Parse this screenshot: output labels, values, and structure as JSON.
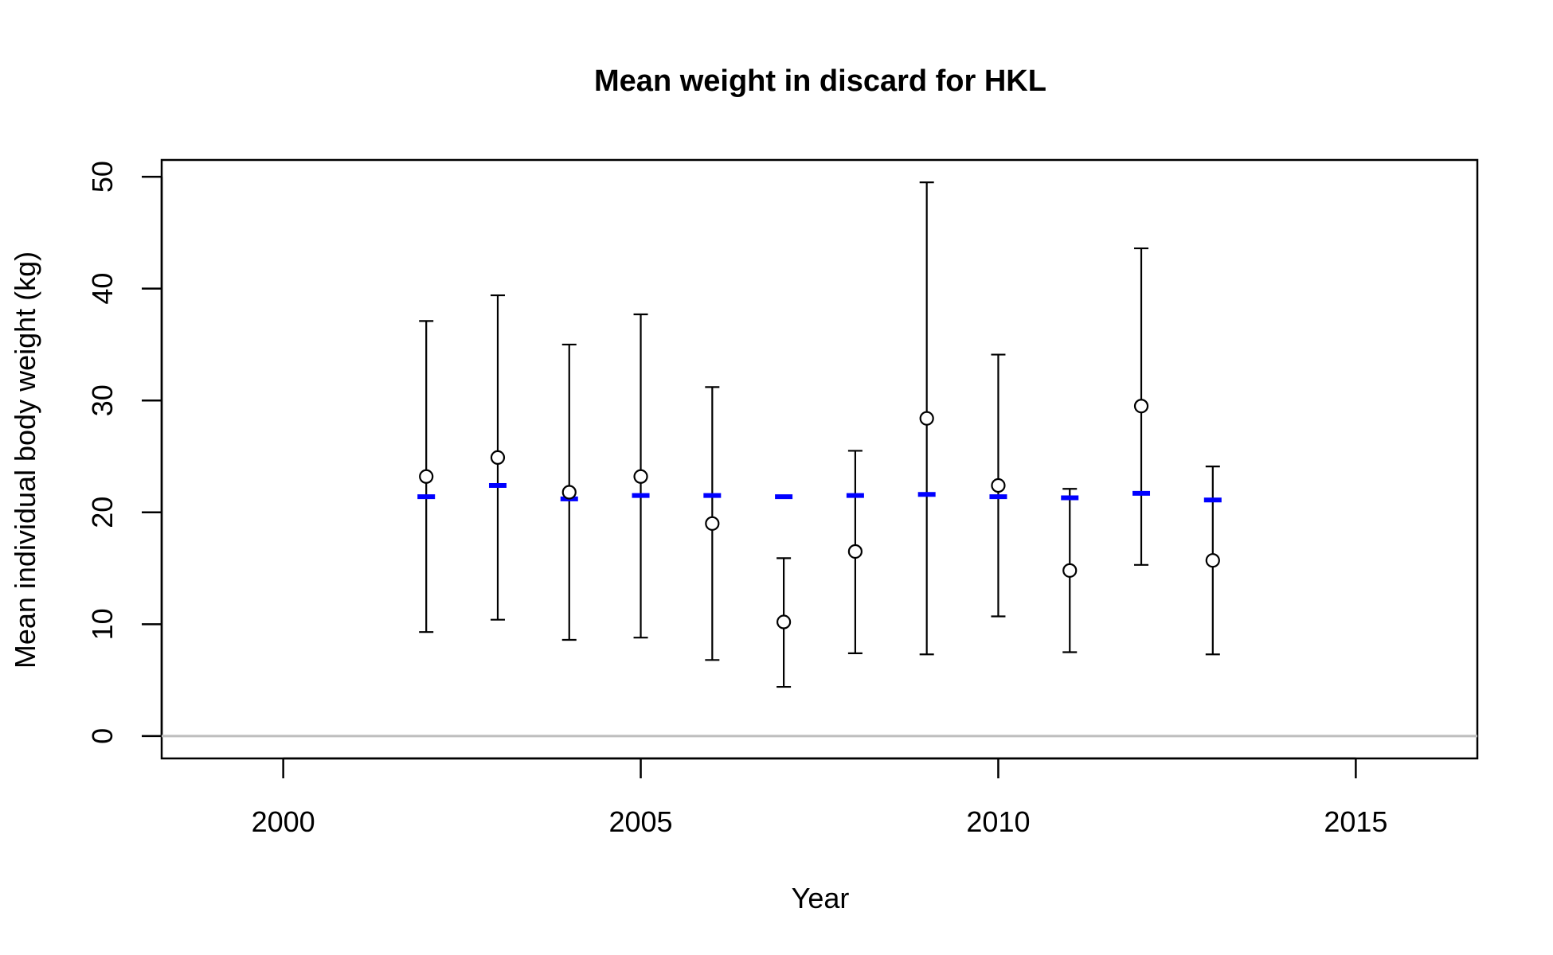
{
  "chart_data": {
    "type": "scatter",
    "title": "Mean weight in discard for HKL",
    "xlabel": "Year",
    "ylabel": "Mean individual body weight (kg)",
    "xlim": [
      1998.3,
      2016.7
    ],
    "ylim": [
      -2,
      51.5
    ],
    "xticks": [
      2000,
      2005,
      2010,
      2015
    ],
    "yticks": [
      0,
      10,
      20,
      30,
      40,
      50
    ],
    "x": [
      2002,
      2003,
      2004,
      2005,
      2006,
      2007,
      2008,
      2009,
      2010,
      2011,
      2012,
      2013
    ],
    "series": [
      {
        "kind": "points",
        "marker": "open-circle",
        "color": "#000000",
        "values": [
          23.2,
          24.9,
          21.8,
          23.2,
          19.0,
          10.2,
          16.5,
          28.4,
          22.4,
          14.8,
          29.5,
          15.7
        ]
      },
      {
        "kind": "error-bars",
        "color": "#000000",
        "lower": [
          9.3,
          10.4,
          8.6,
          8.8,
          6.8,
          4.4,
          7.4,
          7.3,
          10.7,
          7.5,
          15.3,
          7.3
        ],
        "upper": [
          37.1,
          39.4,
          35.0,
          37.7,
          31.2,
          15.9,
          25.5,
          49.5,
          34.1,
          22.1,
          43.6,
          24.1
        ]
      },
      {
        "kind": "dash",
        "color": "#0000ff",
        "values": [
          21.4,
          22.4,
          21.2,
          21.5,
          21.5,
          21.4,
          21.5,
          21.6,
          21.4,
          21.3,
          21.7,
          21.1
        ]
      }
    ],
    "reference_line": {
      "y": 0,
      "color": "#bebebe"
    },
    "grid": false,
    "legend": "none"
  }
}
